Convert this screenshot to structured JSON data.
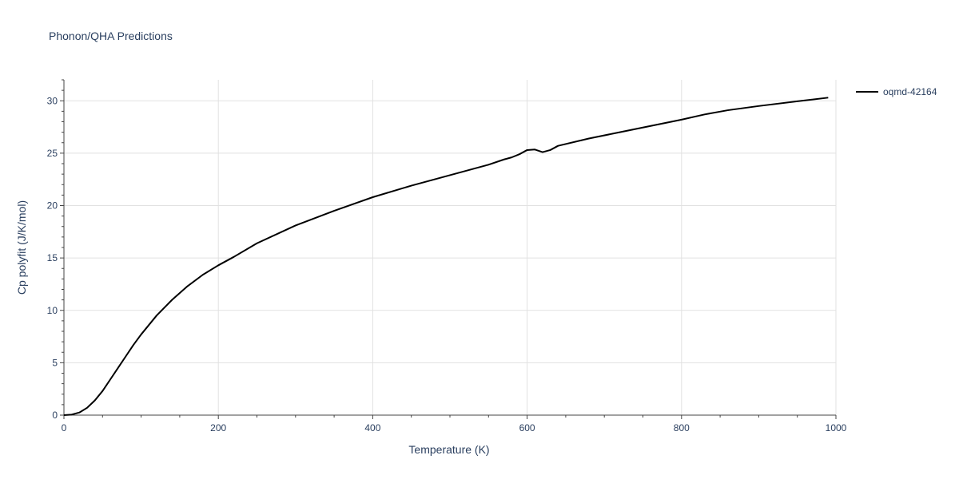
{
  "chart_data": {
    "type": "line",
    "title": "Phonon/QHA Predictions",
    "xlabel": "Temperature (K)",
    "ylabel": "Cp polyfit (J/K/mol)",
    "xlim": [
      0,
      1000
    ],
    "ylim": [
      0,
      32
    ],
    "xticks": [
      0,
      200,
      400,
      600,
      800,
      1000
    ],
    "yticks": [
      0,
      5,
      10,
      15,
      20,
      25,
      30
    ],
    "grid": true,
    "legend_position": "top-right",
    "series": [
      {
        "name": "oqmd-42164",
        "color": "#000000",
        "x": [
          0,
          10,
          20,
          30,
          40,
          50,
          60,
          70,
          80,
          90,
          100,
          120,
          140,
          160,
          180,
          200,
          220,
          250,
          300,
          350,
          400,
          450,
          500,
          550,
          570,
          580,
          590,
          600,
          610,
          620,
          630,
          640,
          680,
          720,
          760,
          800,
          830,
          860,
          900,
          950,
          990
        ],
        "y": [
          0,
          0.05,
          0.25,
          0.7,
          1.4,
          2.3,
          3.4,
          4.5,
          5.6,
          6.7,
          7.7,
          9.5,
          11.0,
          12.3,
          13.4,
          14.3,
          15.1,
          16.4,
          18.1,
          19.5,
          20.8,
          21.9,
          22.9,
          23.9,
          24.4,
          24.6,
          24.9,
          25.3,
          25.35,
          25.1,
          25.3,
          25.7,
          26.4,
          27.0,
          27.6,
          28.2,
          28.7,
          29.1,
          29.5,
          29.95,
          30.3
        ]
      }
    ]
  }
}
